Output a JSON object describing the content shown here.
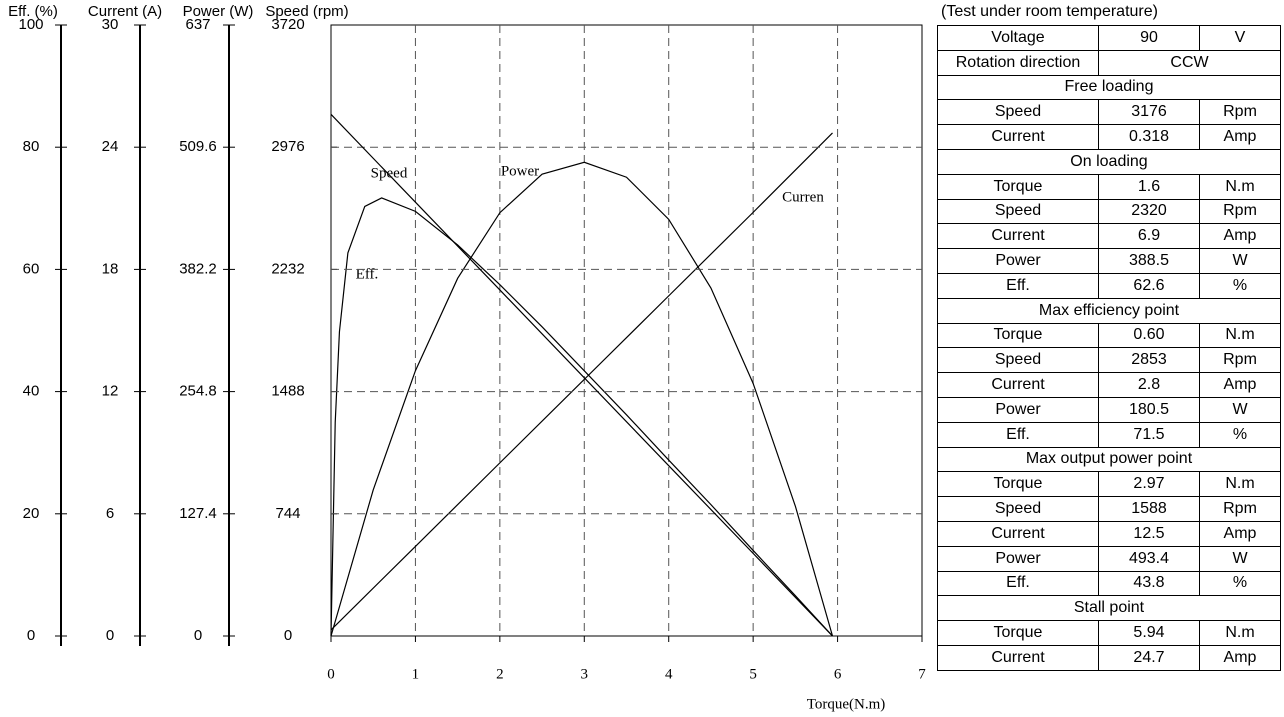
{
  "chart_data": {
    "type": "line",
    "x_label": "Torque(N.m)",
    "xlim": [
      0,
      7
    ],
    "xticks": [
      0,
      1,
      2,
      3,
      4,
      5,
      6,
      7
    ],
    "grid": true,
    "color": "#000000",
    "y_axes": [
      {
        "label": "Eff. (%)",
        "ylim": [
          0,
          100
        ],
        "yticks": [
          0,
          20,
          40,
          60,
          80,
          100
        ],
        "series": [
          {
            "name": "Eff.",
            "color": "#000000",
            "x": [
              0,
              0.05,
              0.1,
              0.2,
              0.4,
              0.6,
              1,
              1.5,
              2,
              2.5,
              3,
              3.5,
              4,
              4.5,
              5,
              5.5,
              5.94
            ],
            "values": [
              0,
              35,
              49.8,
              62.7,
              70.3,
              71.7,
              69.5,
              64,
              57.5,
              50.6,
              43.4,
              36.2,
              28.8,
              21.5,
              14,
              6.6,
              0
            ]
          }
        ]
      },
      {
        "label": "Current (A)",
        "ylim": [
          0,
          30
        ],
        "yticks": [
          0,
          6,
          12,
          18,
          24,
          30
        ],
        "series": [
          {
            "name": "Curren",
            "color": "#000000",
            "x": [
              0,
              1,
              2,
              3,
              4,
              5,
              5.94
            ],
            "values": [
              0.3,
              4.4,
              8.5,
              12.6,
              16.7,
              20.8,
              24.7
            ]
          }
        ]
      },
      {
        "label": "Power (W)",
        "ylim": [
          0,
          637
        ],
        "yticks": [
          0,
          127.4,
          254.8,
          382.2,
          509.6,
          637
        ],
        "series": [
          {
            "name": "Power",
            "color": "#000000",
            "x": [
              0,
              0.5,
              1,
              1.5,
              2,
              2.5,
              3,
              3.5,
              4,
              4.5,
              5,
              5.5,
              5.94
            ],
            "values": [
              0,
              152.3,
              276.6,
              372.9,
              441.3,
              481.5,
              493.9,
              478.3,
              434.4,
              362.8,
              263.3,
              135.4,
              0
            ]
          }
        ]
      },
      {
        "label": "Speed (rpm)",
        "ylim": [
          0,
          3720
        ],
        "yticks": [
          0,
          744,
          1488,
          2232,
          2976,
          3720
        ],
        "series": [
          {
            "name": "Speed",
            "color": "#000000",
            "x": [
              0,
              1,
              2,
              3,
              4,
              5,
              5.94
            ],
            "values": [
              3176,
              2641,
              2107,
              1572,
              1037,
              503,
              0
            ]
          }
        ]
      }
    ]
  },
  "spec_table": {
    "note": "(Test under room temperature)",
    "rows": [
      [
        "Voltage",
        "90",
        "V"
      ],
      [
        "Rotation direction",
        "CCW"
      ],
      [
        "Free loading"
      ],
      [
        "Speed",
        "3176",
        "Rpm"
      ],
      [
        "Current",
        "0.318",
        "Amp"
      ],
      [
        "On loading"
      ],
      [
        "Torque",
        "1.6",
        "N.m"
      ],
      [
        "Speed",
        "2320",
        "Rpm"
      ],
      [
        "Current",
        "6.9",
        "Amp"
      ],
      [
        "Power",
        "388.5",
        "W"
      ],
      [
        "Eff.",
        "62.6",
        "%"
      ],
      [
        "Max efficiency point"
      ],
      [
        "Torque",
        "0.60",
        "N.m"
      ],
      [
        "Speed",
        "2853",
        "Rpm"
      ],
      [
        "Current",
        "2.8",
        "Amp"
      ],
      [
        "Power",
        "180.5",
        "W"
      ],
      [
        "Eff.",
        "71.5",
        "%"
      ],
      [
        "Max output power point"
      ],
      [
        "Torque",
        "2.97",
        "N.m"
      ],
      [
        "Speed",
        "1588",
        "Rpm"
      ],
      [
        "Current",
        "12.5",
        "Amp"
      ],
      [
        "Power",
        "493.4",
        "W"
      ],
      [
        "Eff.",
        "43.8",
        "%"
      ],
      [
        "Stall point"
      ],
      [
        "Torque",
        "5.94",
        "N.m"
      ],
      [
        "Current",
        "24.7",
        "Amp"
      ]
    ]
  }
}
